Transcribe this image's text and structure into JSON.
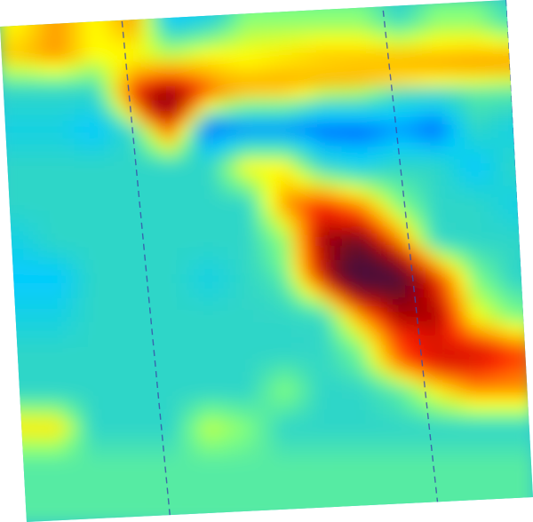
{
  "chart_data": {
    "type": "heatmap",
    "title": "",
    "xlabel": "",
    "ylabel": "",
    "colormap": "jet",
    "colormap_stops": [
      "#00008b",
      "#0000ff",
      "#0066ff",
      "#00ccff",
      "#2fd6c8",
      "#7fff7f",
      "#ffff00",
      "#ff9900",
      "#ff2200",
      "#aa0000",
      "#4a0f3a"
    ],
    "value_range": [
      0,
      1
    ],
    "background_level": 0.4,
    "grid": false,
    "legend": "none",
    "rotation_deg": -4,
    "dashed_marker_lines": 3,
    "rows": 14,
    "cols": 14,
    "values": [
      [
        0.6,
        0.7,
        0.6,
        0.7,
        0.3,
        0.35,
        0.5,
        0.5,
        0.5,
        0.5,
        0.4,
        0.5,
        0.5,
        0.4
      ],
      [
        0.65,
        0.7,
        0.6,
        0.6,
        0.55,
        0.6,
        0.6,
        0.62,
        0.65,
        0.65,
        0.65,
        0.65,
        0.66,
        0.66
      ],
      [
        0.4,
        0.4,
        0.4,
        0.75,
        0.9,
        0.75,
        0.6,
        0.6,
        0.5,
        0.5,
        0.4,
        0.4,
        0.45,
        0.45
      ],
      [
        0.35,
        0.35,
        0.3,
        0.4,
        0.75,
        0.2,
        0.25,
        0.25,
        0.2,
        0.2,
        0.25,
        0.2,
        0.4,
        0.35
      ],
      [
        0.4,
        0.4,
        0.4,
        0.4,
        0.4,
        0.4,
        0.6,
        0.6,
        0.4,
        0.35,
        0.4,
        0.4,
        0.3,
        0.4
      ],
      [
        0.4,
        0.4,
        0.4,
        0.4,
        0.4,
        0.4,
        0.4,
        0.7,
        0.8,
        0.7,
        0.5,
        0.4,
        0.4,
        0.35
      ],
      [
        0.35,
        0.4,
        0.4,
        0.4,
        0.4,
        0.4,
        0.4,
        0.5,
        0.9,
        0.95,
        0.7,
        0.4,
        0.4,
        0.4
      ],
      [
        0.3,
        0.3,
        0.4,
        0.4,
        0.4,
        0.35,
        0.4,
        0.4,
        0.6,
        1.0,
        1.0,
        0.8,
        0.5,
        0.4
      ],
      [
        0.35,
        0.35,
        0.4,
        0.4,
        0.4,
        0.4,
        0.4,
        0.4,
        0.4,
        0.7,
        0.9,
        0.9,
        0.6,
        0.5
      ],
      [
        0.4,
        0.4,
        0.4,
        0.4,
        0.4,
        0.4,
        0.4,
        0.4,
        0.4,
        0.45,
        0.7,
        0.8,
        0.8,
        0.75
      ],
      [
        0.4,
        0.4,
        0.4,
        0.4,
        0.4,
        0.4,
        0.4,
        0.5,
        0.4,
        0.4,
        0.45,
        0.6,
        0.7,
        0.7
      ],
      [
        0.6,
        0.6,
        0.4,
        0.4,
        0.4,
        0.55,
        0.5,
        0.4,
        0.4,
        0.4,
        0.4,
        0.4,
        0.4,
        0.4
      ],
      [
        0.45,
        0.45,
        0.45,
        0.45,
        0.45,
        0.45,
        0.45,
        0.45,
        0.45,
        0.45,
        0.45,
        0.45,
        0.45,
        0.45
      ],
      [
        0.45,
        0.45,
        0.45,
        0.45,
        0.45,
        0.45,
        0.45,
        0.45,
        0.45,
        0.45,
        0.45,
        0.45,
        0.45,
        0.45
      ]
    ],
    "hotspots": [
      {
        "name": "upper-left-core",
        "x": 4.3,
        "y": 2.8,
        "value": 0.92,
        "sx": 0.7,
        "sy": 0.5
      },
      {
        "name": "diagonal-core",
        "x": 9.4,
        "y": 7.3,
        "value": 1.0,
        "sx": 1.3,
        "sy": 0.7
      },
      {
        "name": "diagonal-tail",
        "x": 11.9,
        "y": 9.6,
        "value": 0.85,
        "sx": 1.6,
        "sy": 0.5
      }
    ],
    "ridges": [
      {
        "name": "upper-band",
        "x0": 3.6,
        "y0": 2.45,
        "x1": 13.8,
        "y1": 1.75,
        "value": 0.68,
        "width": 0.35
      },
      {
        "name": "lower-band",
        "x0": 0.0,
        "y0": 11.4,
        "x1": 1.6,
        "y1": 11.45,
        "value": 0.62,
        "width": 0.2
      }
    ]
  }
}
